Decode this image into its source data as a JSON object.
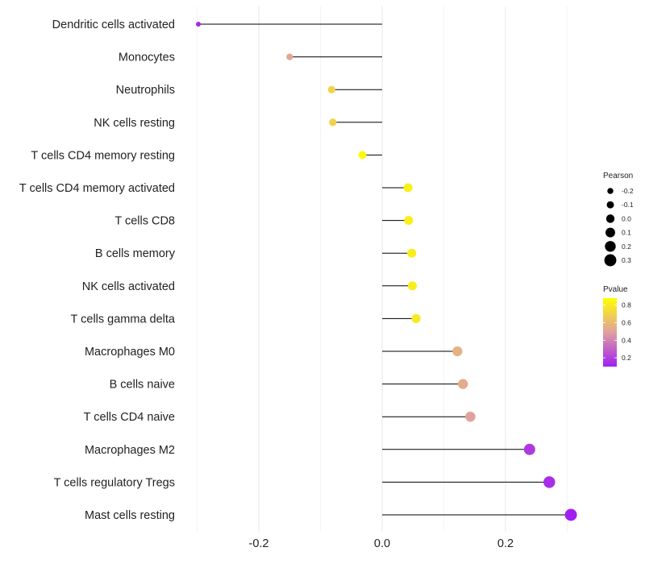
{
  "chart_data": {
    "type": "lollipop",
    "title": "",
    "xlabel": "",
    "ylabel": "",
    "xlim": [
      -0.31,
      0.31
    ],
    "x_ticks": [
      {
        "value": -0.2,
        "label": "-0.2"
      },
      {
        "value": 0.0,
        "label": "0.0"
      },
      {
        "value": 0.2,
        "label": "0.2"
      }
    ],
    "grid": true,
    "points": [
      {
        "category": "Dendritic cells activated",
        "pearson": -0.298,
        "pvalue": 0.12
      },
      {
        "category": "Monocytes",
        "pearson": -0.15,
        "pvalue": 0.52
      },
      {
        "category": "Neutrophils",
        "pearson": -0.082,
        "pvalue": 0.7
      },
      {
        "category": "NK cells resting",
        "pearson": -0.08,
        "pvalue": 0.7
      },
      {
        "category": "T cells CD4 memory resting",
        "pearson": -0.032,
        "pvalue": 0.86
      },
      {
        "category": "T cells CD4 memory activated",
        "pearson": 0.042,
        "pvalue": 0.82
      },
      {
        "category": "T cells CD8",
        "pearson": 0.043,
        "pvalue": 0.82
      },
      {
        "category": "B cells memory",
        "pearson": 0.048,
        "pvalue": 0.81
      },
      {
        "category": "NK cells activated",
        "pearson": 0.049,
        "pvalue": 0.81
      },
      {
        "category": "T cells gamma delta",
        "pearson": 0.055,
        "pvalue": 0.79
      },
      {
        "category": "Macrophages M0",
        "pearson": 0.122,
        "pvalue": 0.56
      },
      {
        "category": "B cells naive",
        "pearson": 0.131,
        "pvalue": 0.54
      },
      {
        "category": "T cells CD4 naive",
        "pearson": 0.143,
        "pvalue": 0.5
      },
      {
        "category": "Macrophages M2",
        "pearson": 0.239,
        "pvalue": 0.18
      },
      {
        "category": "T cells regulatory  Tregs",
        "pearson": 0.271,
        "pvalue": 0.14
      },
      {
        "category": "Mast cells resting",
        "pearson": 0.306,
        "pvalue": 0.1
      }
    ],
    "legend": {
      "size": {
        "title": "Pearson",
        "entries": [
          {
            "label": "-0.2",
            "value": -0.2
          },
          {
            "label": "-0.1",
            "value": -0.1
          },
          {
            "label": "0.0",
            "value": 0.0
          },
          {
            "label": "0.1",
            "value": 0.1
          },
          {
            "label": "0.2",
            "value": 0.2
          },
          {
            "label": "0.3",
            "value": 0.3
          }
        ]
      },
      "color": {
        "title": "Pvalue",
        "range": [
          0.1,
          0.88
        ],
        "ticks": [
          {
            "label": "0.8",
            "value": 0.8
          },
          {
            "label": "0.6",
            "value": 0.6
          },
          {
            "label": "0.4",
            "value": 0.4
          },
          {
            "label": "0.2",
            "value": 0.2
          }
        ],
        "low_color": "#a020f0",
        "mid_color": "#e0a0a0",
        "high_color": "#ffff00"
      },
      "placement": "right"
    },
    "colors": {
      "stem": "#000000",
      "grid": "#ebebeb",
      "background": "#ffffff"
    }
  }
}
